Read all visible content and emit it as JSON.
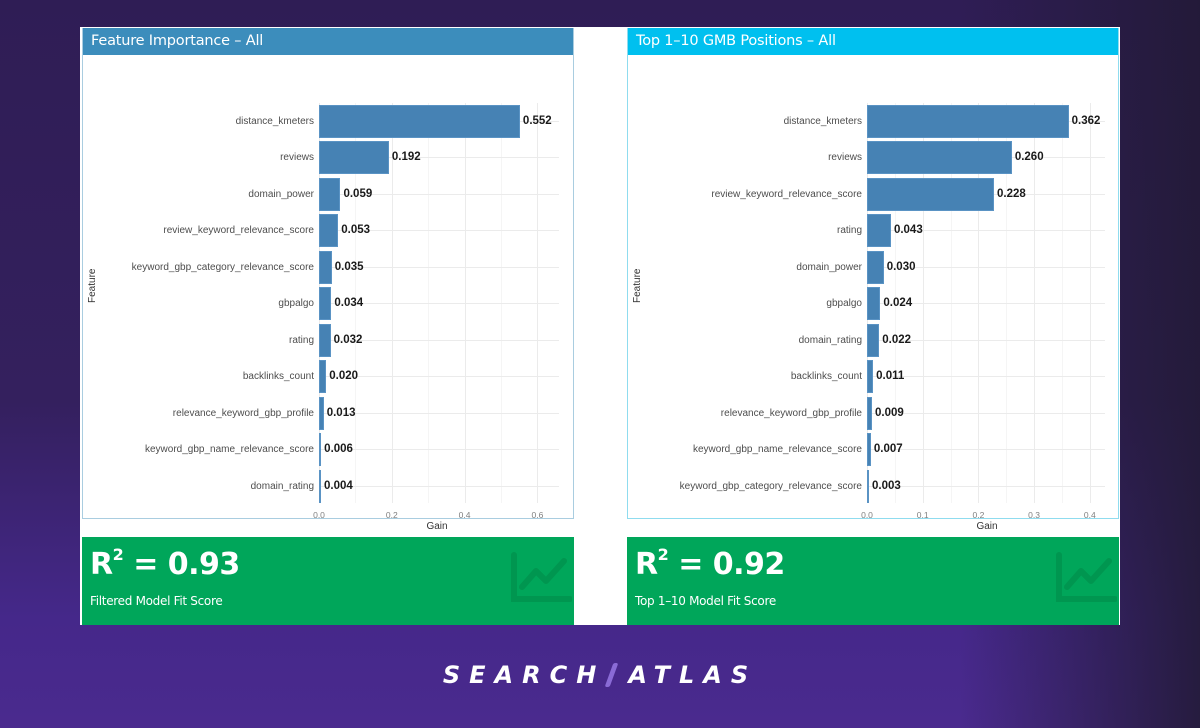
{
  "panels": {
    "left": {
      "title": "Feature Importance – All",
      "header_color": "#3c8dbc",
      "y_axis_title": "Feature",
      "x_axis_title": "Gain"
    },
    "right": {
      "title": "Top 1–10 GMB Positions – All",
      "header_color": "#00c0ef",
      "y_axis_title": "Feature",
      "x_axis_title": "Gain"
    }
  },
  "valueboxes": {
    "left": {
      "label_prefix": "R",
      "superscript": "2",
      "value_text": " = 0.93",
      "subtitle": "Filtered Model Fit Score",
      "icon": "line-chart-icon",
      "color": "#00a65a"
    },
    "right": {
      "label_prefix": "R",
      "superscript": "2",
      "value_text": " = 0.92",
      "subtitle": "Top 1–10 Model Fit Score",
      "icon": "line-chart-icon",
      "color": "#00a65a"
    }
  },
  "brand": {
    "left": "SEARCH",
    "right": "ATLAS"
  },
  "chart_data": [
    {
      "type": "bar",
      "orientation": "horizontal",
      "title": "Feature Importance – All",
      "xlabel": "Gain",
      "ylabel": "Feature",
      "xlim": [
        0,
        0.62
      ],
      "x_ticks": [
        "0.0",
        "0.2",
        "0.4",
        "0.6"
      ],
      "grid": true,
      "bar_color": "#4682b4",
      "categories": [
        "distance_kmeters",
        "reviews",
        "domain_power",
        "review_keyword_relevance_score",
        "keyword_gbp_category_relevance_score",
        "gbpalgo",
        "rating",
        "backlinks_count",
        "relevance_keyword_gbp_profile",
        "keyword_gbp_name_relevance_score",
        "domain_rating"
      ],
      "values": [
        0.552,
        0.192,
        0.059,
        0.053,
        0.035,
        0.034,
        0.032,
        0.02,
        0.013,
        0.006,
        0.004
      ],
      "labels": [
        "0.552",
        "0.192",
        "0.059",
        "0.053",
        "0.035",
        "0.034",
        "0.032",
        "0.020",
        "0.013",
        "0.006",
        "0.004"
      ]
    },
    {
      "type": "bar",
      "orientation": "horizontal",
      "title": "Top 1–10 GMB Positions – All",
      "xlabel": "Gain",
      "ylabel": "Feature",
      "xlim": [
        0,
        0.42
      ],
      "x_ticks": [
        "0.0",
        "0.1",
        "0.2",
        "0.3",
        "0.4"
      ],
      "grid": true,
      "bar_color": "#4682b4",
      "categories": [
        "distance_kmeters",
        "reviews",
        "review_keyword_relevance_score",
        "rating",
        "domain_power",
        "gbpalgo",
        "domain_rating",
        "backlinks_count",
        "relevance_keyword_gbp_profile",
        "keyword_gbp_name_relevance_score",
        "keyword_gbp_category_relevance_score"
      ],
      "values": [
        0.362,
        0.26,
        0.228,
        0.043,
        0.03,
        0.024,
        0.022,
        0.011,
        0.009,
        0.007,
        0.003
      ],
      "labels": [
        "0.362",
        "0.260",
        "0.228",
        "0.043",
        "0.030",
        "0.024",
        "0.022",
        "0.011",
        "0.009",
        "0.007",
        "0.003"
      ]
    }
  ]
}
